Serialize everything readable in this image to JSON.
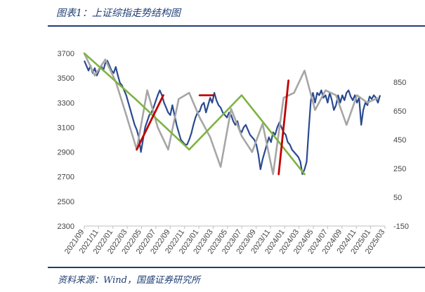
{
  "header": {
    "title": "图表1：上证综指走势结构图"
  },
  "footer": {
    "source": "资料来源：Wind，国盛证券研究所"
  },
  "chart_data": {
    "type": "line",
    "title": "图表1：上证综指走势结构图",
    "x_tick_labels": [
      "2021/09",
      "2021/11",
      "2022/01",
      "2022/03",
      "2022/05",
      "2022/07",
      "2022/09",
      "2022/11",
      "2023/01",
      "2023/03",
      "2023/05",
      "2023/07",
      "2023/09",
      "2023/11",
      "2024/01",
      "2024/03",
      "2024/05",
      "2024/07",
      "2024/09",
      "2024/11",
      "2025/01",
      "2025/03"
    ],
    "ylim_left": [
      2300,
      3700
    ],
    "yticks_left": [
      2300,
      2500,
      2700,
      2900,
      3100,
      3300,
      3500,
      3700
    ],
    "ylim_right": [
      -150,
      1050
    ],
    "yticks_right": [
      -150,
      50,
      250,
      450,
      650,
      850
    ],
    "xlim": [
      0,
      43
    ],
    "grid": false,
    "legend": "none",
    "colors": {
      "index": "#2a4a8f",
      "down_trend": "#7fb342",
      "up_trend": "#c00000",
      "swing": "#a6a6a6",
      "rule": "#1f3e74"
    },
    "series": [
      {
        "role": "index",
        "x": [
          0,
          0.3,
          0.6,
          0.9,
          1.2,
          1.5,
          1.8,
          2.1,
          2.4,
          2.7,
          3,
          3.3,
          3.6,
          3.9,
          4.2,
          4.5,
          4.8,
          5.1,
          5.4,
          5.7,
          6,
          6.3,
          6.6,
          6.9,
          7.2,
          7.5,
          7.8,
          8.1,
          8.4,
          8.7,
          9,
          9.3,
          9.6,
          9.9,
          10.2,
          10.5,
          10.8,
          11.1,
          11.4,
          11.7,
          12,
          12.3,
          12.6,
          12.9,
          13.2,
          13.5,
          13.8,
          14.1,
          14.4,
          14.7,
          15,
          15.3,
          15.6,
          15.9,
          16.2,
          16.5,
          16.8,
          17.1,
          17.4,
          17.7,
          18,
          18.3,
          18.6,
          18.9,
          19.2,
          19.5,
          19.8,
          20.1,
          20.4,
          20.7,
          21,
          21.3,
          21.6,
          21.9,
          22.2,
          22.5,
          22.8,
          23.1,
          23.4,
          23.7,
          24,
          24.3,
          24.6,
          24.9,
          25.2,
          25.5,
          25.8,
          26.1,
          26.4,
          26.7,
          27,
          27.3,
          27.6,
          27.9,
          28.2,
          28.5,
          28.8,
          29.1,
          29.4,
          29.7,
          30,
          30.3,
          30.6,
          30.9,
          31.2,
          31.5,
          31.8,
          32.1,
          32.4,
          32.7,
          33,
          33.3,
          33.6,
          33.9,
          34.2,
          34.5,
          34.8,
          35.1,
          35.4,
          35.7,
          36,
          36.3,
          36.6,
          36.9,
          37.2,
          37.5,
          37.8,
          38.1,
          38.4,
          38.7,
          39,
          39.3,
          39.6,
          39.9,
          40.2,
          40.5,
          40.8,
          41.1,
          41.4,
          41.7,
          42,
          42.3
        ],
        "y": [
          3640,
          3600,
          3560,
          3600,
          3540,
          3580,
          3520,
          3560,
          3600,
          3560,
          3620,
          3640,
          3600,
          3560,
          3540,
          3590,
          3520,
          3460,
          3440,
          3400,
          3360,
          3300,
          3240,
          3180,
          3120,
          3080,
          3020,
          2900,
          3000,
          3100,
          3150,
          3200,
          3220,
          3260,
          3310,
          3360,
          3400,
          3360,
          3300,
          3260,
          3220,
          3200,
          3280,
          3200,
          3120,
          3060,
          3000,
          2980,
          2960,
          2960,
          3000,
          3050,
          3120,
          3180,
          3220,
          3230,
          3280,
          3300,
          3220,
          3280,
          3340,
          3300,
          3380,
          3320,
          3280,
          3260,
          3220,
          3200,
          3180,
          3220,
          3200,
          3150,
          3120,
          3150,
          3080,
          3060,
          3100,
          3120,
          3080,
          3040,
          3020,
          3000,
          2960,
          2880,
          2760,
          2840,
          2900,
          2960,
          3020,
          2980,
          3060,
          3040,
          3100,
          3140,
          3100,
          3060,
          3040,
          2980,
          2960,
          2920,
          2900,
          2880,
          2860,
          2820,
          2720,
          2760,
          2820,
          3080,
          3320,
          3380,
          3300,
          3380,
          3360,
          3400,
          3340,
          3360,
          3300,
          3380,
          3320,
          3240,
          3280,
          3360,
          3300,
          3360,
          3320,
          3380,
          3400,
          3350,
          3320,
          3360,
          3300,
          3340,
          3120,
          3240,
          3300,
          3280,
          3350,
          3330,
          3360,
          3340,
          3300,
          3360
        ]
      },
      {
        "role": "swing",
        "x": [
          0,
          1.5,
          3,
          4.5,
          6,
          7.5,
          9,
          10.5,
          12,
          13.5,
          15,
          16.5,
          18,
          19.5,
          21,
          22.5,
          24,
          25.5,
          27,
          28.5,
          30,
          31.5,
          33,
          34.5,
          36,
          37.5,
          39,
          40.5,
          42
        ],
        "y": [
          3700,
          3520,
          3650,
          3470,
          3200,
          2920,
          3400,
          3100,
          2920,
          3330,
          3380,
          3180,
          3020,
          2780,
          3250,
          3030,
          2900,
          3130,
          2720,
          3340,
          3380,
          3560,
          3240,
          3400,
          3360,
          3120,
          3360,
          3300,
          3340
        ]
      },
      {
        "role": "down_trend",
        "x": [
          0,
          7.5,
          15,
          22.5,
          31.5
        ],
        "y": [
          3700,
          3320,
          2920,
          3360,
          2720
        ]
      },
      {
        "role": "up_trend",
        "x": [
          7.5,
          11.3,
          16.5,
          18.5,
          27.8,
          29.2
        ],
        "y": [
          2920,
          3360,
          3360,
          3360,
          2720,
          3480
        ]
      }
    ]
  }
}
